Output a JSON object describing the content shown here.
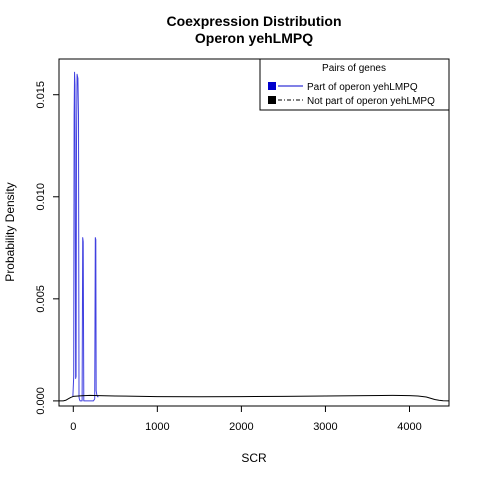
{
  "chart_data": {
    "type": "line",
    "title": "Coexpression Distribution",
    "subtitle": "Operon yehLMPQ",
    "xlabel": "SCR",
    "ylabel": "Probability Density",
    "xlim": [
      -170,
      4470
    ],
    "ylim": [
      -0.00025,
      0.01675
    ],
    "x_ticks": [
      0,
      1000,
      2000,
      3000,
      4000
    ],
    "y_ticks": [
      0.0,
      0.005,
      0.01,
      0.015
    ],
    "x_tick_labels": [
      "0",
      "1000",
      "2000",
      "3000",
      "4000"
    ],
    "y_tick_labels": [
      "0.000",
      "0.005",
      "0.010",
      "0.015"
    ],
    "grid": false,
    "legend": {
      "title": "Pairs of genes",
      "placement": "top-right",
      "entries": [
        {
          "label": "Part of operon yehLMPQ",
          "color": "#0000cc",
          "line": "solid"
        },
        {
          "label": "Not part of operon yehLMPQ",
          "color": "#000000",
          "line": "dashdot"
        }
      ]
    },
    "series": [
      {
        "name": "Part of operon yehLMPQ",
        "color": "#4040e0",
        "x": [
          -5,
          5,
          10,
          15,
          20,
          28,
          33,
          38,
          45,
          55,
          62,
          68,
          72,
          80,
          85,
          90,
          95,
          105,
          112,
          118,
          125,
          135,
          160,
          200,
          240,
          255,
          262,
          268,
          272,
          280,
          290,
          300
        ],
        "y": [
          0.0002,
          0.0012,
          0.014,
          0.0161,
          0.0155,
          0.0011,
          0.0012,
          0.0125,
          0.016,
          0.0158,
          0.014,
          0.0002,
          0.0001,
          0.0,
          0.0,
          0.0,
          0.0,
          0.0,
          0.008,
          0.0078,
          0.0,
          0.0,
          0.0,
          0.0,
          0.0,
          0.0001,
          0.008,
          0.0079,
          0.0005,
          0.0003,
          0.0002,
          0.0002
        ]
      },
      {
        "name": "Not part of operon yehLMPQ",
        "color": "#000000",
        "x": [
          -170,
          -150,
          -120,
          -90,
          -60,
          -30,
          0,
          100,
          200,
          300,
          500,
          1000,
          1500,
          2000,
          2500,
          3000,
          3500,
          3800,
          4000,
          4100,
          4200,
          4250,
          4300,
          4350,
          4400,
          4470
        ],
        "y": [
          0.0,
          0.0,
          0.0,
          3e-05,
          0.0001,
          0.00017,
          0.00022,
          0.00025,
          0.00027,
          0.00026,
          0.00024,
          0.00021,
          0.0002,
          0.00021,
          0.00022,
          0.00024,
          0.00026,
          0.00027,
          0.00026,
          0.00024,
          0.00019,
          0.00013,
          7e-05,
          3e-05,
          1e-05,
          0.0
        ]
      }
    ]
  }
}
